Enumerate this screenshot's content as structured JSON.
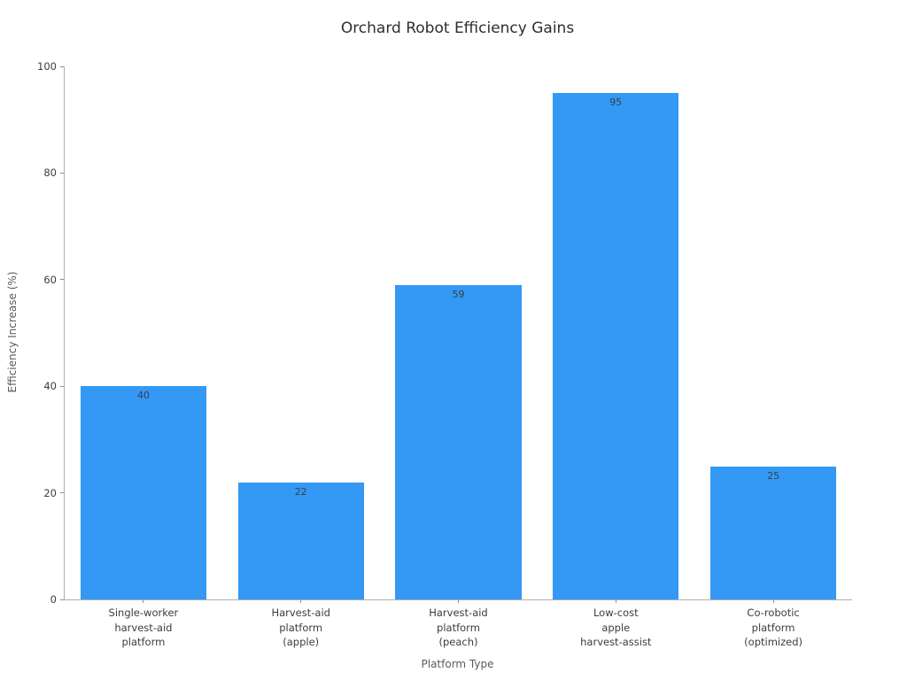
{
  "chart_data": {
    "type": "bar",
    "title": "Orchard Robot Efficiency Gains",
    "xlabel": "Platform Type",
    "ylabel": "Efficiency Increase (%)",
    "categories": [
      "Single-worker\nharvest-aid\nplatform",
      "Harvest-aid\nplatform\n(apple)",
      "Harvest-aid\nplatform\n(peach)",
      "Low-cost\napple\nharvest-assist",
      "Co-robotic\nplatform\n(optimized)"
    ],
    "values": [
      40,
      22,
      59,
      95,
      25
    ],
    "value_labels": [
      "40",
      "22",
      "59",
      "95",
      "25"
    ],
    "ylim": [
      0,
      100
    ],
    "yticks": [
      0,
      20,
      40,
      60,
      80,
      100
    ],
    "ytick_labels": [
      "0",
      "20",
      "40",
      "60",
      "80",
      "100"
    ],
    "grid": false,
    "legend": "none",
    "bar_color": "#3399f4",
    "bar_width_ratio": 0.8,
    "background_color": "#ffffff",
    "axis_color": "#aeaeae",
    "tick_label_color": "#3c3c3c",
    "value_label_color": "#37414a"
  }
}
